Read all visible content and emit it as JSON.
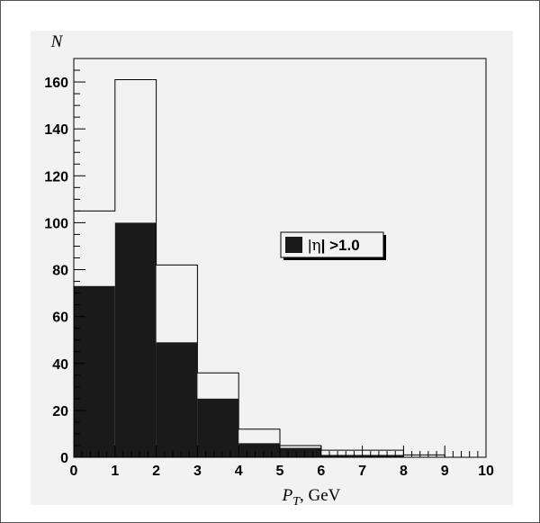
{
  "chart_data": {
    "type": "bar",
    "xlabel": {
      "main": "P",
      "sub": "T",
      "rest": ", GeV"
    },
    "ylabel": "N",
    "xlim": [
      0,
      10
    ],
    "ylim": [
      0,
      170
    ],
    "x_ticks": [
      "0",
      "1",
      "2",
      "3",
      "4",
      "5",
      "6",
      "7",
      "8",
      "9",
      "10"
    ],
    "y_ticks": [
      "0",
      "20",
      "40",
      "60",
      "80",
      "100",
      "120",
      "140",
      "160"
    ],
    "bin_edges": [
      0,
      1,
      2,
      3,
      4,
      5,
      6,
      7,
      8,
      9,
      10
    ],
    "series": [
      {
        "style": "outline",
        "color": "#000000",
        "values": [
          105,
          161,
          82,
          36,
          12,
          5,
          3,
          3,
          1,
          0
        ]
      },
      {
        "name": "|η| >1.0",
        "style": "filled",
        "color": "#1a1a1a",
        "values": [
          73,
          100,
          49,
          25,
          6,
          4,
          1,
          1,
          0,
          0
        ]
      }
    ],
    "legend": {
      "label_prefix": "|",
      "label_symbol": "η",
      "label_suffix": "| >1.0",
      "position": "center-right"
    },
    "grid": false
  }
}
